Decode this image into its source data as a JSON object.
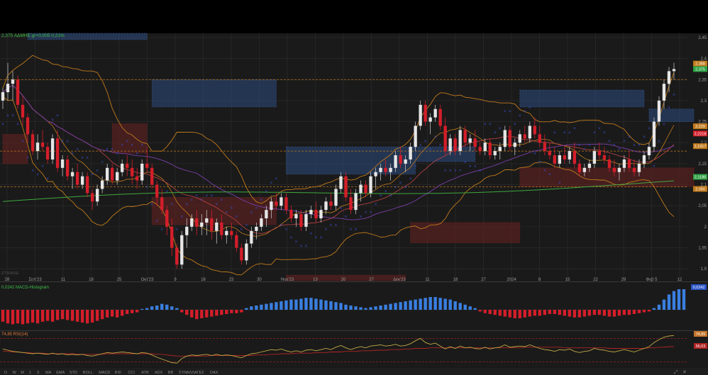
{
  "header": {
    "quote": "2,375 ΑΔΜΗΕ.gr+0,005 0,21%"
  },
  "watermark": "ZTRADE",
  "panels": {
    "macd": {
      "label": "0,0242 MACD-Histogram",
      "tag": "0,0242"
    },
    "rsi": {
      "label": "74,85 RSI(14)",
      "tag_value": "74,85",
      "tag_signal": "56,03"
    }
  },
  "toolbar": {
    "items": [
      "D",
      "W",
      "M",
      "1",
      "5",
      "MA",
      "EMA",
      "STD",
      "BOLL",
      "MACD",
      "RSI",
      "CCI",
      "ATR",
      "ADX",
      "BB",
      "ΣΥΝΑΛΛΑΓΕΣ",
      "DAX"
    ]
  },
  "colors": {
    "background": "#1a1a1a",
    "up": "#e6e6e6",
    "down": "#d41e2a",
    "grid": "#2e2e2e",
    "label": "#9a9a9a",
    "bollinger": "#c07a1c",
    "ma20": "#b04040",
    "ma50": "#7a3fa8",
    "ma200": "#3fa83f",
    "sar": "#3a4fd0",
    "zone_blue": "#2e4c80",
    "zone_red": "#6a2222",
    "macd_up": "#3a7fe0",
    "macd_down": "#d41e2a",
    "rsi": "#c2aa46"
  },
  "chart_data": {
    "type": "candlestick",
    "title": "ΑΔΜΗΕ.gr",
    "ylim": [
      1.87,
      2.46
    ],
    "y_ticks": [
      "2,45",
      "2,4",
      "2,35",
      "2,3",
      "2,25",
      "2,2",
      "2,15",
      "2,1",
      "2,05",
      "2",
      "1,95",
      "1,9"
    ],
    "y_tick_values": [
      2.45,
      2.4,
      2.35,
      2.3,
      2.25,
      2.2,
      2.15,
      2.1,
      2.05,
      2.0,
      1.95,
      1.9
    ],
    "x_labels": [
      "28",
      "Σεπ'23",
      "11",
      "18",
      "25",
      "Οκτ'23",
      "9",
      "16",
      "23",
      "30",
      "Νοε'23",
      "13",
      "20",
      "27",
      "Δεκ'23",
      "11",
      "18",
      "27",
      "2024",
      "8",
      "15",
      "22",
      "29",
      "Φεβ 5",
      "12"
    ],
    "price_tags": [
      {
        "label": "2,388",
        "value": 2.388,
        "color": "#c07a1c"
      },
      {
        "label": "2,375",
        "value": 2.375,
        "color": "#2ea043"
      },
      {
        "label": "2,239",
        "value": 2.239,
        "color": "#c07a1c"
      },
      {
        "label": "2,2218",
        "value": 2.2218,
        "color": "#d41e2a"
      },
      {
        "label": "2,1917",
        "value": 2.1917,
        "color": "#c07a1c"
      },
      {
        "label": "2,1186",
        "value": 2.1186,
        "color": "#2ea043"
      },
      {
        "label": "2,090",
        "value": 2.09,
        "color": "#c07a1c"
      }
    ],
    "zones": [
      {
        "kind": "resistance",
        "start": 5,
        "end": 29,
        "top": 2.46,
        "bottom": 2.445
      },
      {
        "kind": "resistance",
        "start": 30,
        "end": 55,
        "top": 2.35,
        "bottom": 2.285
      },
      {
        "kind": "resistance",
        "start": 57,
        "end": 83,
        "top": 2.19,
        "bottom": 2.125
      },
      {
        "kind": "resistance",
        "start": 83,
        "end": 95,
        "top": 2.19,
        "bottom": 2.155
      },
      {
        "kind": "resistance",
        "start": 104,
        "end": 129,
        "top": 2.325,
        "bottom": 2.285
      },
      {
        "kind": "resistance",
        "start": 130,
        "end": 139,
        "top": 2.28,
        "bottom": 2.25
      },
      {
        "kind": "support",
        "start": 0,
        "end": 5,
        "top": 2.22,
        "bottom": 2.15
      },
      {
        "kind": "support",
        "start": 22,
        "end": 29,
        "top": 2.245,
        "bottom": 2.175
      },
      {
        "kind": "support",
        "start": 30,
        "end": 55,
        "top": 2.07,
        "bottom": 2.005
      },
      {
        "kind": "support",
        "start": 57,
        "end": 81,
        "top": 1.885,
        "bottom": 1.872
      },
      {
        "kind": "support",
        "start": 82,
        "end": 104,
        "top": 2.01,
        "bottom": 1.962
      },
      {
        "kind": "support",
        "start": 104,
        "end": 139,
        "top": 2.14,
        "bottom": 2.095
      }
    ],
    "guides": [
      {
        "value": 2.35,
        "color": "#c07a1c"
      },
      {
        "value": 2.18,
        "color": "#c07a1c"
      },
      {
        "value": 2.095,
        "color": "#c07a1c"
      }
    ],
    "candles": [
      [
        2.3,
        2.33,
        2.28,
        2.32
      ],
      [
        2.32,
        2.39,
        2.3,
        2.34
      ],
      [
        2.34,
        2.37,
        2.3,
        2.35
      ],
      [
        2.35,
        2.36,
        2.28,
        2.29
      ],
      [
        2.29,
        2.31,
        2.24,
        2.26
      ],
      [
        2.26,
        2.27,
        2.2,
        2.22
      ],
      [
        2.22,
        2.23,
        2.17,
        2.18
      ],
      [
        2.18,
        2.22,
        2.16,
        2.2
      ],
      [
        2.2,
        2.23,
        2.18,
        2.19
      ],
      [
        2.19,
        2.2,
        2.15,
        2.16
      ],
      [
        2.16,
        2.22,
        2.15,
        2.21
      ],
      [
        2.21,
        2.23,
        2.13,
        2.14
      ],
      [
        2.14,
        2.17,
        2.12,
        2.16
      ],
      [
        2.16,
        2.17,
        2.11,
        2.12
      ],
      [
        2.12,
        2.14,
        2.09,
        2.13
      ],
      [
        2.13,
        2.15,
        2.09,
        2.1
      ],
      [
        2.1,
        2.13,
        2.09,
        2.12
      ],
      [
        2.12,
        2.13,
        2.07,
        2.08
      ],
      [
        2.08,
        2.09,
        2.04,
        2.06
      ],
      [
        2.06,
        2.1,
        2.05,
        2.09
      ],
      [
        2.09,
        2.12,
        2.08,
        2.11
      ],
      [
        2.11,
        2.15,
        2.1,
        2.14
      ],
      [
        2.14,
        2.15,
        2.1,
        2.11
      ],
      [
        2.11,
        2.14,
        2.1,
        2.13
      ],
      [
        2.13,
        2.16,
        2.12,
        2.15
      ],
      [
        2.15,
        2.17,
        2.12,
        2.14
      ],
      [
        2.14,
        2.16,
        2.1,
        2.12
      ],
      [
        2.12,
        2.14,
        2.09,
        2.11
      ],
      [
        2.11,
        2.16,
        2.1,
        2.15
      ],
      [
        2.15,
        2.19,
        2.13,
        2.14
      ],
      [
        2.14,
        2.15,
        2.09,
        2.1
      ],
      [
        2.1,
        2.11,
        2.05,
        2.07
      ],
      [
        2.07,
        2.09,
        2.03,
        2.04
      ],
      [
        2.04,
        2.05,
        1.98,
        2.0
      ],
      [
        2.0,
        2.02,
        1.93,
        1.95
      ],
      [
        1.95,
        1.96,
        1.9,
        1.91
      ],
      [
        1.91,
        1.99,
        1.9,
        1.98
      ],
      [
        1.98,
        2.02,
        1.95,
        2.0
      ],
      [
        2.0,
        2.03,
        1.99,
        2.02
      ],
      [
        2.02,
        2.04,
        1.98,
        2.0
      ],
      [
        2.0,
        2.03,
        1.98,
        2.01
      ],
      [
        2.01,
        2.04,
        1.98,
        2.02
      ],
      [
        2.02,
        2.04,
        1.97,
        1.99
      ],
      [
        1.99,
        2.02,
        1.96,
        2.01
      ],
      [
        2.01,
        2.03,
        1.97,
        1.98
      ],
      [
        1.98,
        2.0,
        1.96,
        1.99
      ],
      [
        1.99,
        2.01,
        1.97,
        1.98
      ],
      [
        1.98,
        1.99,
        1.94,
        1.95
      ],
      [
        1.95,
        1.96,
        1.91,
        1.92
      ],
      [
        1.92,
        1.97,
        1.91,
        1.96
      ],
      [
        1.96,
        2.0,
        1.95,
        1.99
      ],
      [
        1.99,
        2.01,
        1.97,
        2.0
      ],
      [
        2.0,
        2.03,
        1.99,
        2.02
      ],
      [
        2.02,
        2.05,
        2.0,
        2.04
      ],
      [
        2.04,
        2.07,
        2.02,
        2.06
      ],
      [
        2.06,
        2.08,
        2.04,
        2.05
      ],
      [
        2.05,
        2.08,
        2.04,
        2.07
      ],
      [
        2.07,
        2.08,
        2.03,
        2.04
      ],
      [
        2.04,
        2.05,
        2.01,
        2.02
      ],
      [
        2.02,
        2.04,
        2.0,
        2.03
      ],
      [
        2.03,
        2.04,
        1.99,
        2.0
      ],
      [
        2.0,
        2.04,
        1.99,
        2.03
      ],
      [
        2.03,
        2.05,
        2.02,
        2.04
      ],
      [
        2.04,
        2.06,
        2.01,
        2.02
      ],
      [
        2.02,
        2.05,
        2.01,
        2.04
      ],
      [
        2.04,
        2.07,
        2.03,
        2.06
      ],
      [
        2.06,
        2.08,
        2.04,
        2.05
      ],
      [
        2.05,
        2.1,
        2.04,
        2.09
      ],
      [
        2.09,
        2.13,
        2.08,
        2.12
      ],
      [
        2.12,
        2.13,
        2.06,
        2.07
      ],
      [
        2.07,
        2.09,
        2.03,
        2.04
      ],
      [
        2.04,
        2.09,
        2.03,
        2.08
      ],
      [
        2.08,
        2.11,
        2.06,
        2.1
      ],
      [
        2.1,
        2.11,
        2.07,
        2.08
      ],
      [
        2.08,
        2.13,
        2.07,
        2.12
      ],
      [
        2.12,
        2.14,
        2.09,
        2.13
      ],
      [
        2.13,
        2.15,
        2.11,
        2.14
      ],
      [
        2.14,
        2.16,
        2.12,
        2.13
      ],
      [
        2.13,
        2.15,
        2.11,
        2.14
      ],
      [
        2.14,
        2.18,
        2.13,
        2.17
      ],
      [
        2.17,
        2.19,
        2.14,
        2.15
      ],
      [
        2.15,
        2.17,
        2.13,
        2.16
      ],
      [
        2.16,
        2.2,
        2.15,
        2.19
      ],
      [
        2.19,
        2.25,
        2.18,
        2.24
      ],
      [
        2.24,
        2.3,
        2.23,
        2.29
      ],
      [
        2.29,
        2.3,
        2.24,
        2.25
      ],
      [
        2.25,
        2.27,
        2.22,
        2.26
      ],
      [
        2.26,
        2.29,
        2.25,
        2.28
      ],
      [
        2.28,
        2.29,
        2.23,
        2.24
      ],
      [
        2.24,
        2.26,
        2.17,
        2.18
      ],
      [
        2.18,
        2.22,
        2.17,
        2.21
      ],
      [
        2.21,
        2.22,
        2.17,
        2.18
      ],
      [
        2.18,
        2.24,
        2.17,
        2.23
      ],
      [
        2.23,
        2.24,
        2.19,
        2.2
      ],
      [
        2.2,
        2.22,
        2.18,
        2.21
      ],
      [
        2.21,
        2.23,
        2.18,
        2.19
      ],
      [
        2.19,
        2.2,
        2.17,
        2.18
      ],
      [
        2.18,
        2.21,
        2.17,
        2.2
      ],
      [
        2.2,
        2.21,
        2.16,
        2.17
      ],
      [
        2.17,
        2.19,
        2.16,
        2.18
      ],
      [
        2.18,
        2.2,
        2.16,
        2.19
      ],
      [
        2.19,
        2.24,
        2.18,
        2.23
      ],
      [
        2.23,
        2.24,
        2.18,
        2.19
      ],
      [
        2.19,
        2.21,
        2.17,
        2.2
      ],
      [
        2.2,
        2.23,
        2.19,
        2.22
      ],
      [
        2.22,
        2.24,
        2.2,
        2.21
      ],
      [
        2.21,
        2.25,
        2.2,
        2.24
      ],
      [
        2.24,
        2.26,
        2.21,
        2.22
      ],
      [
        2.22,
        2.24,
        2.19,
        2.2
      ],
      [
        2.2,
        2.22,
        2.17,
        2.18
      ],
      [
        2.18,
        2.2,
        2.16,
        2.17
      ],
      [
        2.17,
        2.19,
        2.14,
        2.15
      ],
      [
        2.15,
        2.18,
        2.14,
        2.17
      ],
      [
        2.17,
        2.19,
        2.15,
        2.16
      ],
      [
        2.16,
        2.19,
        2.15,
        2.18
      ],
      [
        2.18,
        2.2,
        2.14,
        2.15
      ],
      [
        2.15,
        2.16,
        2.12,
        2.13
      ],
      [
        2.13,
        2.15,
        2.12,
        2.14
      ],
      [
        2.14,
        2.16,
        2.13,
        2.15
      ],
      [
        2.15,
        2.19,
        2.14,
        2.18
      ],
      [
        2.18,
        2.2,
        2.16,
        2.17
      ],
      [
        2.17,
        2.19,
        2.15,
        2.16
      ],
      [
        2.16,
        2.17,
        2.13,
        2.14
      ],
      [
        2.14,
        2.16,
        2.12,
        2.13
      ],
      [
        2.13,
        2.15,
        2.11,
        2.14
      ],
      [
        2.14,
        2.17,
        2.13,
        2.16
      ],
      [
        2.16,
        2.18,
        2.13,
        2.14
      ],
      [
        2.14,
        2.16,
        2.12,
        2.13
      ],
      [
        2.13,
        2.16,
        2.12,
        2.15
      ],
      [
        2.15,
        2.18,
        2.14,
        2.17
      ],
      [
        2.17,
        2.2,
        2.16,
        2.19
      ],
      [
        2.19,
        2.26,
        2.18,
        2.25
      ],
      [
        2.25,
        2.31,
        2.24,
        2.3
      ],
      [
        2.3,
        2.35,
        2.28,
        2.34
      ],
      [
        2.34,
        2.38,
        2.32,
        2.37
      ],
      [
        2.37,
        2.39,
        2.35,
        2.375
      ]
    ],
    "macd_histogram": [
      -0.014,
      -0.016,
      -0.017,
      -0.016,
      -0.017,
      -0.016,
      -0.015,
      -0.016,
      -0.014,
      -0.013,
      -0.014,
      -0.012,
      -0.011,
      -0.012,
      -0.013,
      -0.014,
      -0.015,
      -0.016,
      -0.015,
      -0.013,
      -0.011,
      -0.009,
      -0.008,
      -0.009,
      -0.007,
      -0.005,
      -0.004,
      -0.003,
      0.001,
      0.002,
      0.004,
      0.005,
      0.007,
      0.006,
      0.004,
      0.002,
      -0.003,
      -0.006,
      -0.009,
      -0.011,
      -0.01,
      -0.009,
      -0.008,
      -0.007,
      -0.006,
      -0.005,
      -0.004,
      -0.004,
      -0.003,
      0.002,
      0.004,
      0.005,
      0.006,
      0.007,
      0.008,
      0.009,
      0.01,
      0.011,
      0.012,
      0.012,
      0.013,
      0.014,
      0.014,
      0.013,
      0.012,
      0.011,
      0.01,
      0.009,
      0.008,
      0.006,
      0.005,
      0.004,
      0.003,
      0.002,
      0.003,
      0.004,
      0.005,
      0.006,
      0.007,
      0.008,
      0.009,
      0.01,
      0.011,
      0.012,
      0.013,
      0.014,
      0.015,
      0.015,
      0.014,
      0.013,
      0.012,
      0.01,
      0.008,
      0.006,
      0.004,
      0.002,
      -0.002,
      -0.004,
      -0.005,
      -0.006,
      -0.007,
      -0.008,
      -0.009,
      -0.01,
      -0.01,
      -0.009,
      -0.008,
      -0.007,
      -0.007,
      -0.006,
      -0.005,
      -0.005,
      -0.006,
      -0.007,
      -0.008,
      -0.009,
      -0.009,
      -0.008,
      -0.007,
      -0.006,
      -0.006,
      -0.007,
      -0.008,
      -0.008,
      -0.007,
      -0.006,
      -0.006,
      -0.005,
      -0.004,
      -0.003,
      -0.002,
      0.002,
      0.006,
      0.012,
      0.018,
      0.022,
      0.0242,
      0.0242
    ],
    "rsi": [
      52,
      50,
      48,
      47,
      46,
      45,
      44,
      45,
      44,
      43,
      45,
      43,
      44,
      42,
      43,
      42,
      43,
      41,
      40,
      42,
      44,
      46,
      45,
      46,
      47,
      46,
      45,
      44,
      46,
      45,
      42,
      38,
      35,
      32,
      29,
      28,
      36,
      40,
      42,
      41,
      42,
      43,
      41,
      43,
      41,
      42,
      41,
      39,
      37,
      41,
      44,
      45,
      47,
      49,
      51,
      50,
      52,
      49,
      47,
      49,
      47,
      50,
      51,
      49,
      51,
      53,
      51,
      55,
      58,
      54,
      51,
      54,
      56,
      54,
      57,
      58,
      59,
      57,
      58,
      60,
      57,
      58,
      61,
      66,
      70,
      63,
      60,
      62,
      57,
      52,
      56,
      53,
      57,
      54,
      55,
      53,
      52,
      55,
      52,
      54,
      55,
      59,
      55,
      56,
      57,
      56,
      59,
      56,
      53,
      51,
      50,
      48,
      51,
      50,
      52,
      48,
      46,
      48,
      49,
      53,
      51,
      50,
      48,
      47,
      49,
      51,
      49,
      47,
      50,
      53,
      56,
      63,
      68,
      72,
      74,
      74.85
    ],
    "rsi_signal": [
      48,
      48,
      47,
      47,
      46,
      46,
      45,
      45,
      45,
      44,
      44,
      44,
      44,
      44,
      44,
      43,
      43,
      43,
      43,
      43,
      43,
      44,
      44,
      44,
      44,
      44,
      44,
      44,
      44,
      44,
      44,
      43,
      43,
      42,
      41,
      40,
      40,
      40,
      40,
      40,
      40,
      40,
      41,
      41,
      41,
      41,
      41,
      41,
      41,
      41,
      41,
      42,
      42,
      42,
      43,
      43,
      44,
      44,
      44,
      45,
      45,
      45,
      45,
      46,
      46,
      46,
      47,
      47,
      47,
      48,
      48,
      48,
      49,
      49,
      49,
      50,
      50,
      50,
      51,
      51,
      51,
      52,
      52,
      53,
      53,
      53,
      54,
      54,
      54,
      54,
      54,
      54,
      54,
      54,
      54,
      54,
      54,
      54,
      54,
      54,
      54,
      54,
      54,
      54,
      54,
      55,
      55,
      55,
      55,
      55,
      55,
      55,
      55,
      54,
      54,
      54,
      54,
      54,
      54,
      54,
      54,
      54,
      53,
      53,
      53,
      53,
      53,
      53,
      53,
      53,
      54,
      54,
      55,
      55,
      56,
      56.03
    ]
  }
}
